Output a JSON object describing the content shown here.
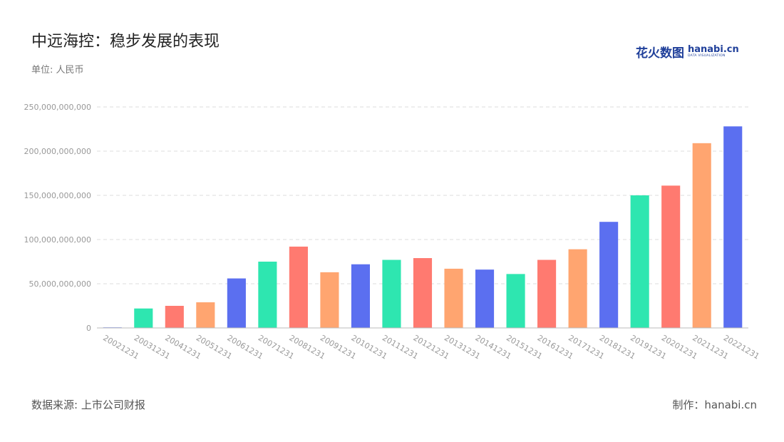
{
  "header": {
    "title": "中远海控：稳步发展的表现",
    "unit": "单位: 人民币"
  },
  "logo": {
    "cn": "花火数图",
    "en": "hanabi.cn",
    "en_sub": "DATA VISUALIZATION"
  },
  "footer": {
    "source": "数据来源: 上市公司财报",
    "maker": "制作：hanabi.cn"
  },
  "colors": {
    "palette": [
      "#5b6ff0",
      "#2ee6b0",
      "#ff7a70",
      "#ffa570"
    ],
    "grid": "#dddddd",
    "axis": "#bbbbbb"
  },
  "chart_data": {
    "type": "bar",
    "title": "中远海控：稳步发展的表现",
    "xlabel": "",
    "ylabel": "",
    "ylim": [
      0,
      250000000000
    ],
    "yticks": [
      0,
      50000000000,
      100000000000,
      150000000000,
      200000000000,
      250000000000
    ],
    "ytick_labels": [
      "0",
      "50,000,000,000",
      "100,000,000,000",
      "150,000,000,000",
      "200,000,000,000",
      "250,000,000,000"
    ],
    "grid": true,
    "categories": [
      "20021231",
      "20031231",
      "20041231",
      "20051231",
      "20061231",
      "20071231",
      "20081231",
      "20091231",
      "20101231",
      "20111231",
      "20121231",
      "20131231",
      "20141231",
      "20151231",
      "20161231",
      "20171231",
      "20181231",
      "20191231",
      "20201231",
      "20211231",
      "20221231"
    ],
    "values": [
      500000000,
      22000000000,
      25000000000,
      29000000000,
      56000000000,
      75000000000,
      92000000000,
      63000000000,
      72000000000,
      77000000000,
      79000000000,
      67000000000,
      66000000000,
      61000000000,
      77000000000,
      89000000000,
      120000000000,
      150000000000,
      161000000000,
      209000000000,
      228000000000
    ],
    "bar_colors": [
      "#5b6ff0",
      "#2ee6b0",
      "#ff7a70",
      "#ffa570",
      "#5b6ff0",
      "#2ee6b0",
      "#ff7a70",
      "#ffa570",
      "#5b6ff0",
      "#2ee6b0",
      "#ff7a70",
      "#ffa570",
      "#5b6ff0",
      "#2ee6b0",
      "#ff7a70",
      "#ffa570",
      "#5b6ff0",
      "#2ee6b0",
      "#ff7a70",
      "#ffa570",
      "#5b6ff0"
    ]
  }
}
